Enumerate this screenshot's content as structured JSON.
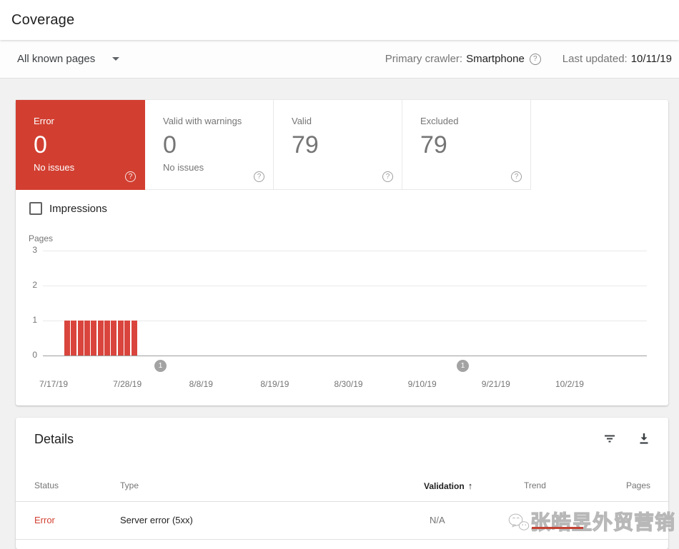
{
  "header": {
    "title": "Coverage"
  },
  "filter_bar": {
    "scope_selector": "All known pages",
    "primary_crawler_label": "Primary crawler:",
    "primary_crawler_value": "Smartphone",
    "last_updated_label": "Last updated:",
    "last_updated_value": "10/11/19"
  },
  "summary_tiles": [
    {
      "label": "Error",
      "value": "0",
      "sub": "No issues",
      "selected": true
    },
    {
      "label": "Valid with warnings",
      "value": "0",
      "sub": "No issues",
      "selected": false
    },
    {
      "label": "Valid",
      "value": "79",
      "sub": "",
      "selected": false
    },
    {
      "label": "Excluded",
      "value": "79",
      "sub": "",
      "selected": false
    }
  ],
  "impressions_label": "Impressions",
  "chart_data": {
    "type": "bar",
    "title": "",
    "ylabel": "Pages",
    "ylim": [
      0,
      3
    ],
    "yticks": [
      3,
      2,
      1,
      0
    ],
    "x_tick_labels": [
      "7/17/19",
      "7/28/19",
      "8/8/19",
      "8/19/19",
      "8/30/19",
      "9/10/19",
      "9/21/19",
      "10/2/19"
    ],
    "grid": "horizontal",
    "series": [
      {
        "name": "Error pages",
        "color": "#d9453d",
        "values": [
          1,
          1,
          1,
          1,
          1,
          1,
          1,
          1,
          1,
          1,
          1
        ],
        "note": "11 consecutive daily bars of height 1 starting near 7/19/19 and ending before 8/2/19"
      }
    ],
    "annotations": [
      {
        "label": "1",
        "near_x": "8/2/19"
      },
      {
        "label": "1",
        "near_x": "9/16/19"
      }
    ]
  },
  "details": {
    "title": "Details",
    "columns": [
      "Status",
      "Type",
      "Validation",
      "Trend",
      "Pages"
    ],
    "sorted_column": "Validation",
    "sort_indicator": "↑",
    "rows": [
      {
        "status": "Error",
        "type": "Server error (5xx)",
        "validation": "N/A",
        "trend": "",
        "pages": ""
      }
    ]
  },
  "watermark": {
    "text": "张皓昱外贸营销"
  },
  "colors": {
    "error_red": "#d23f31",
    "bar_red": "#d9453d"
  }
}
